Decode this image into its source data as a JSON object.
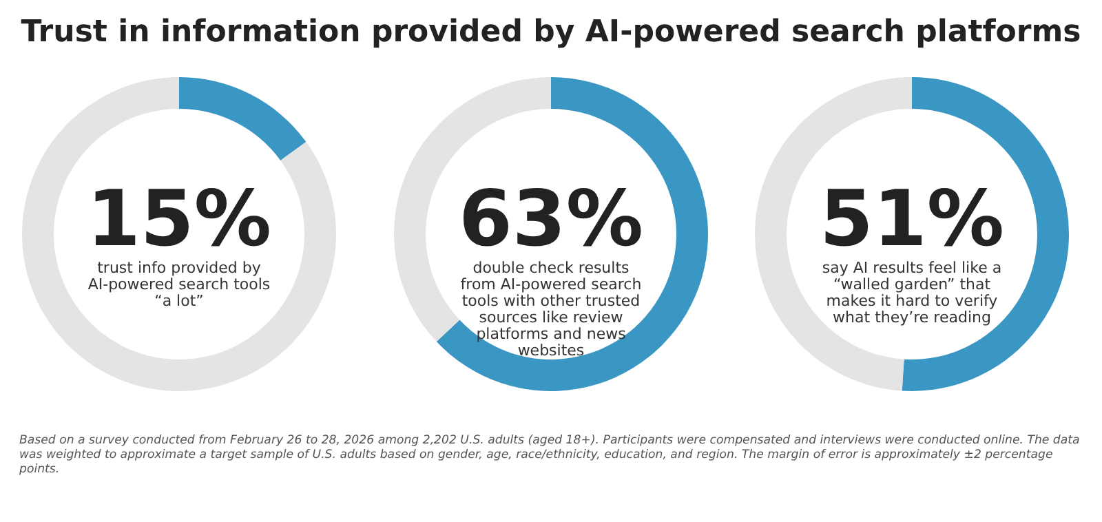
{
  "chart_data": [
    {
      "type": "donut",
      "title": "Trust in information provided by AI-powered search platforms",
      "categories": [
        null,
        null
      ],
      "values": [
        15,
        85
      ],
      "colors": [
        "#3a96c3",
        "#e4e4e4"
      ],
      "value_labels": [
        "15%",
        null
      ],
      "annotations": [
        "trust info provided by AI-powered search tools “a lot”"
      ]
    },
    {
      "type": "donut",
      "categories": [
        null,
        null
      ],
      "values": [
        63,
        37
      ],
      "colors": [
        "#3a96c3",
        "#e4e4e4"
      ],
      "value_labels": [
        "63%",
        null
      ],
      "annotations": [
        "double check results from AI-powered search tools with other trusted sources like review platforms and news websites"
      ]
    },
    {
      "type": "donut",
      "categories": [
        null,
        null
      ],
      "values": [
        51,
        49
      ],
      "colors": [
        "#3a96c3",
        "#e4e4e4"
      ],
      "value_labels": [
        "51%",
        null
      ],
      "annotations": [
        "say AI results feel like a “walled garden” that makes it hard to verify what they’re reading",
        "Based on a survey conducted from February 26 to 28, 2026 among 2,202 U.S. adults (aged 18+). Participants were compensated and interviews were conducted online. The data was weighted to approximate a target sample of U.S. adults based on gender, age, race/ethnicity, education, and region. The margin of error is approximately ±2 percentage points."
      ]
    }
  ]
}
